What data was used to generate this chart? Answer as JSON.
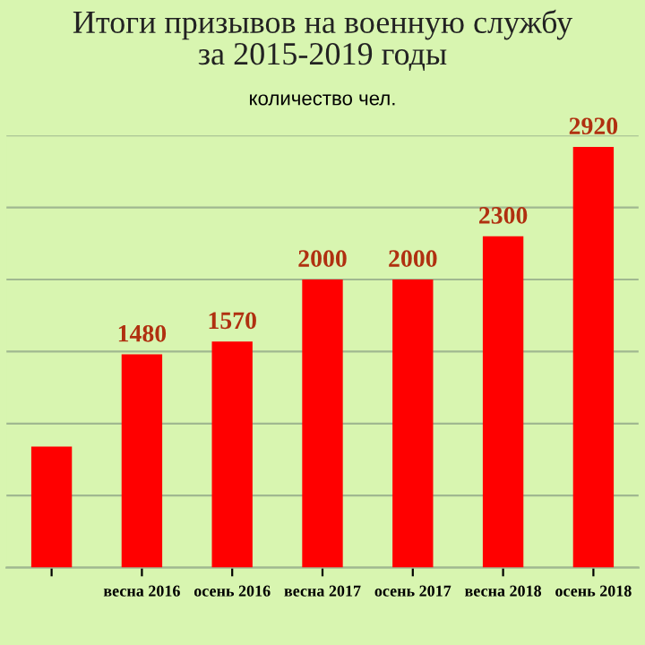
{
  "chart_data": {
    "type": "bar",
    "title": "Итоги призывов на военную службу\nза 2015-2019 годы",
    "subtitle": "количество чел.",
    "categories": [
      null,
      "весна 2016",
      "осень 2016",
      "весна 2017",
      "осень 2017",
      "весна 2018",
      "осень 2018"
    ],
    "values": [
      840,
      1480,
      1570,
      2000,
      2000,
      2300,
      2920
    ],
    "value_labels": [
      null,
      "1480",
      "1570",
      "2000",
      "2000",
      "2300",
      "2920"
    ],
    "color": "#ff0000",
    "ylim": [
      0,
      3000
    ],
    "yticks": [
      0,
      500,
      1000,
      1500,
      2000,
      2500,
      3000
    ],
    "grid": "y",
    "tick_labels": "x"
  }
}
